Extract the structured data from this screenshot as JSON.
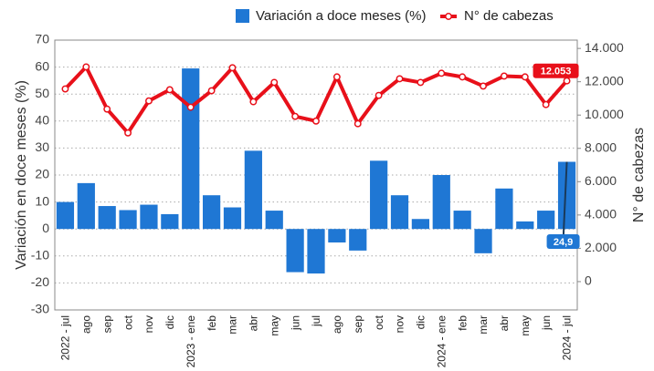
{
  "chart_data": {
    "type": "bar_line",
    "categories": [
      "2022 - jul",
      "ago",
      "sep",
      "oct",
      "nov",
      "dic",
      "2023 - ene",
      "feb",
      "mar",
      "abr",
      "may",
      "jun",
      "jul",
      "ago",
      "sep",
      "oct",
      "nov",
      "dic",
      "2024 - ene",
      "feb",
      "mar",
      "abr",
      "may",
      "jun",
      "2024 - jul"
    ],
    "series": [
      {
        "name": "Variación a doce meses (%)",
        "type": "bar",
        "color": "#1f77d4",
        "values": [
          10,
          17,
          8.5,
          7,
          9,
          5.5,
          59.5,
          12.5,
          8,
          29,
          6.8,
          -16,
          -16.5,
          -5,
          -8,
          25.3,
          12.5,
          3.7,
          20,
          6.8,
          -9,
          15,
          2.8,
          6.8,
          24.9
        ],
        "value_labels": [
          null,
          null,
          null,
          null,
          null,
          null,
          null,
          null,
          null,
          null,
          null,
          null,
          null,
          null,
          null,
          null,
          null,
          null,
          null,
          null,
          null,
          null,
          null,
          null,
          "24,9"
        ]
      },
      {
        "name": "N° de cabezas",
        "type": "line",
        "axis": "y2",
        "color": "#e8101a",
        "values": [
          11570,
          12890,
          10360,
          8930,
          10850,
          11520,
          10470,
          11460,
          12840,
          10800,
          11960,
          9920,
          9640,
          12290,
          9480,
          11180,
          12180,
          11960,
          12510,
          12290,
          11740,
          12340,
          12290,
          10630,
          12053
        ],
        "value_labels": [
          null,
          null,
          null,
          null,
          null,
          null,
          null,
          null,
          null,
          null,
          null,
          null,
          null,
          null,
          null,
          null,
          null,
          null,
          null,
          null,
          null,
          null,
          null,
          null,
          "12.053"
        ]
      }
    ],
    "ylabel": "Variación en doce meses (%)",
    "y2label": "N° de cabezas",
    "ylim": [
      -30,
      70
    ],
    "yticks": [
      -30,
      -20,
      -10,
      0,
      10,
      20,
      30,
      40,
      50,
      60,
      70
    ],
    "y2lim": [
      -1700,
      14500
    ],
    "y2ticks": [
      0,
      {
        "value": 2000,
        "label": "2.000"
      },
      {
        "value": 4000,
        "label": "4.000"
      },
      {
        "value": 6000,
        "label": "6.000"
      },
      {
        "value": 8000,
        "label": "8.000"
      },
      {
        "value": 10000,
        "label": "10.000"
      },
      {
        "value": 12000,
        "label": "12.000"
      },
      {
        "value": 14000,
        "label": "14.000"
      }
    ],
    "grid": true,
    "legend": "top"
  }
}
